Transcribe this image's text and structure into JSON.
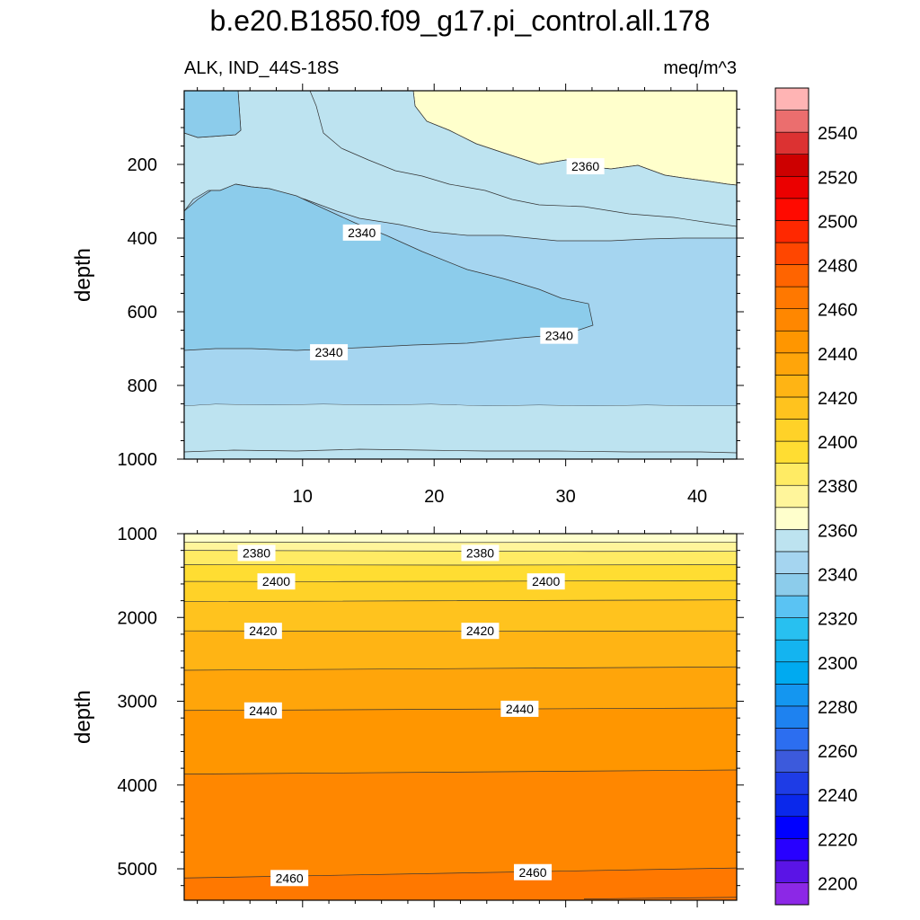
{
  "chart_data": {
    "type": "contour",
    "title": "b.e20.B1850.f09_g17.pi_control.all.178",
    "subtitle_left": "ALK, IND_44S-18S",
    "subtitle_right": "meq/m^3",
    "x_range": [
      1,
      43
    ],
    "x_ticks": [
      10,
      20,
      30,
      40
    ],
    "upper_panel": {
      "ylabel": "depth",
      "ylim": [
        0,
        1000
      ],
      "y_inverted": true,
      "y_ticks": [
        200,
        400,
        600,
        800,
        1000
      ],
      "contour_labels": [
        {
          "text": "2360",
          "x": 31.5,
          "depth": 205
        },
        {
          "text": "2340",
          "x": 14.5,
          "depth": 385
        },
        {
          "text": "2340",
          "x": 12,
          "depth": 710
        },
        {
          "text": "2340",
          "x": 29.5,
          "depth": 665
        }
      ]
    },
    "lower_panel": {
      "ylabel": "depth",
      "ylim": [
        1000,
        5375
      ],
      "y_inverted": true,
      "y_ticks": [
        1000,
        2000,
        3000,
        4000,
        5000
      ],
      "contour_labels": [
        {
          "text": "2380",
          "x": 6.5,
          "depth": 1230
        },
        {
          "text": "2380",
          "x": 23.5,
          "depth": 1230
        },
        {
          "text": "2400",
          "x": 8,
          "depth": 1570
        },
        {
          "text": "2400",
          "x": 28.5,
          "depth": 1570
        },
        {
          "text": "2420",
          "x": 7,
          "depth": 2160
        },
        {
          "text": "2420",
          "x": 23.5,
          "depth": 2160
        },
        {
          "text": "2440",
          "x": 7,
          "depth": 3110
        },
        {
          "text": "2440",
          "x": 26.5,
          "depth": 3090
        },
        {
          "text": "2460",
          "x": 9,
          "depth": 5110
        },
        {
          "text": "2460",
          "x": 27.5,
          "depth": 5040
        }
      ]
    },
    "colorbar": {
      "levels": [
        2200,
        2210,
        2220,
        2230,
        2240,
        2250,
        2260,
        2270,
        2280,
        2290,
        2300,
        2310,
        2320,
        2330,
        2340,
        2350,
        2360,
        2370,
        2380,
        2390,
        2400,
        2410,
        2420,
        2430,
        2440,
        2450,
        2460,
        2470,
        2480,
        2490,
        2500,
        2510,
        2520,
        2530,
        2540,
        2550
      ],
      "labels": [
        "2200",
        "2220",
        "2240",
        "2260",
        "2280",
        "2300",
        "2320",
        "2340",
        "2360",
        "2380",
        "2400",
        "2420",
        "2440",
        "2460",
        "2480",
        "2500",
        "2520",
        "2540"
      ],
      "colors": [
        "#8c28e6",
        "#5a14e6",
        "#2800ff",
        "#0000ff",
        "#0a28eb",
        "#1e3ce6",
        "#3c5adc",
        "#2c6ef0",
        "#1e82f0",
        "#1496f0",
        "#00aaf0",
        "#14b4f0",
        "#28c0f0",
        "#5ac3f3",
        "#8ccceb",
        "#a5d5f0",
        "#bde3f0",
        "#ffffcc",
        "#fff59b",
        "#ffeb64",
        "#ffdd32",
        "#ffd228",
        "#ffc31e",
        "#ffb414",
        "#ffa50a",
        "#ff9600",
        "#ff8700",
        "#ff7800",
        "#ff6400",
        "#ff4600",
        "#ff2800",
        "#ff0a00",
        "#eb0000",
        "#cd0000",
        "#dc3232",
        "#eb6e6e",
        "#ffb4b4"
      ]
    }
  }
}
